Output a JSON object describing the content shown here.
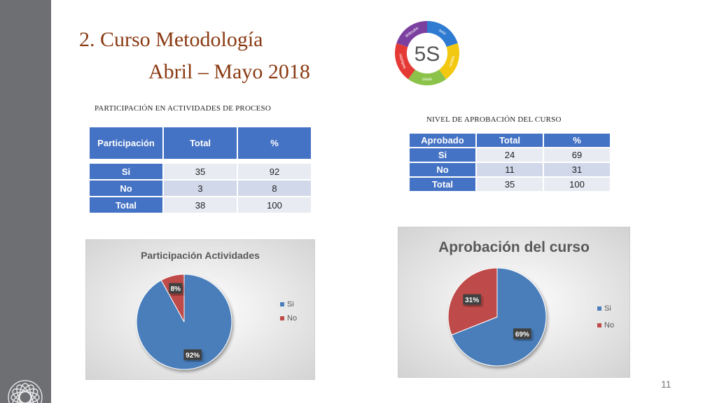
{
  "slide": {
    "title_line1": "2. Curso Metodología",
    "title_line2": "Abril – Mayo 2018",
    "page_number": "11"
  },
  "logo_5s": {
    "center_text": "5S",
    "ring_words": [
      "seiri",
      "seiton",
      "seiso",
      "seiketsu",
      "shitsuke"
    ],
    "ring_colors": [
      "#2e7bd1",
      "#f2c811",
      "#8bc34a",
      "#e53935",
      "#7b3fa0"
    ]
  },
  "participacion": {
    "caption": "PARTICIPACIÓN EN ACTIVIDADES DE PROCESO",
    "headers": [
      "Participación",
      "Total",
      "%"
    ],
    "rows": [
      [
        "Si",
        "35",
        "92"
      ],
      [
        "No",
        "3",
        "8"
      ],
      [
        "Total",
        "38",
        "100"
      ]
    ]
  },
  "aprobacion": {
    "caption": "NIVEL DE APROBACIÓN DEL CURSO",
    "headers": [
      "Aprobado",
      "Total",
      "%"
    ],
    "rows": [
      [
        "Si",
        "24",
        "69"
      ],
      [
        "No",
        "11",
        "31"
      ],
      [
        "Total",
        "35",
        "100"
      ]
    ]
  },
  "chart_data": [
    {
      "type": "pie",
      "title": "Participación Actividades",
      "categories": [
        "Si",
        "No"
      ],
      "values": [
        92,
        8
      ],
      "data_labels": [
        "92%",
        "8%"
      ],
      "colors": [
        "#4a7ebb",
        "#be4b48"
      ],
      "legend_position": "right"
    },
    {
      "type": "pie",
      "title": "Aprobación del curso",
      "categories": [
        "Si",
        "No"
      ],
      "values": [
        69,
        31
      ],
      "data_labels": [
        "69%",
        "31%"
      ],
      "colors": [
        "#4a7ebb",
        "#be4b48"
      ],
      "legend_position": "right"
    }
  ]
}
